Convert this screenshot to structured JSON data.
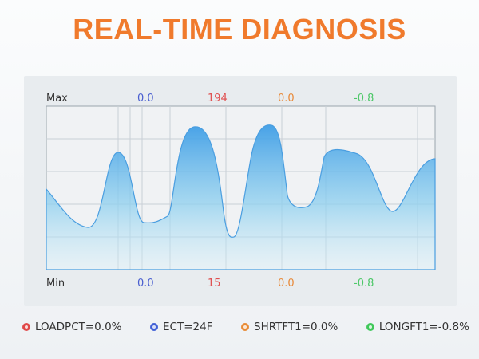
{
  "title": "REAL-TIME DIAGNOSIS",
  "chart": {
    "max_label": "Max",
    "min_label": "Min",
    "max_values": [
      "0.0",
      "194",
      "0.0",
      "-0.8"
    ],
    "min_values": [
      "0.0",
      "15",
      "0.0",
      "-0.8"
    ],
    "value_colors": [
      "#4a5fd0",
      "#e05050",
      "#e88a3a",
      "#4fc86a"
    ]
  },
  "legend": [
    {
      "label": "LOADPCT=0.0%",
      "color": "#e04848"
    },
    {
      "label": "ECT=24F",
      "color": "#3f5fd6"
    },
    {
      "label": "SHRTFT1=0.0%",
      "color": "#e88a34"
    },
    {
      "label": "LONGFT1=-0.8%",
      "color": "#3fc85a"
    }
  ],
  "colors": {
    "title": "#f07a2c",
    "wave_top": "#4aa8e8",
    "wave_bottom": "#bfe6f5"
  }
}
